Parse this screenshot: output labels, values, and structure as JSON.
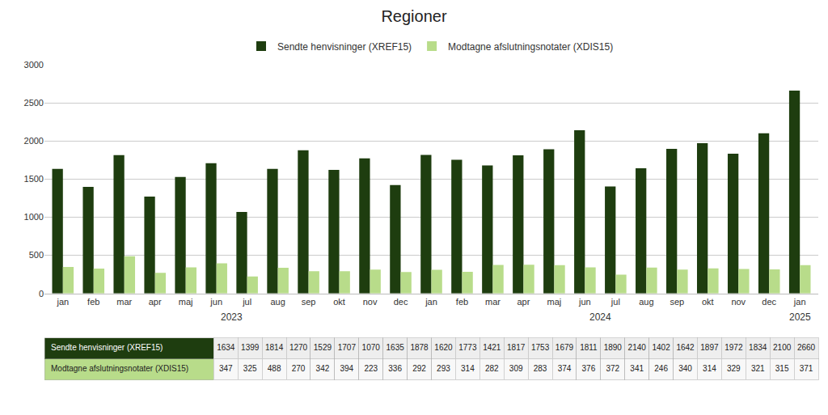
{
  "chart_data": {
    "type": "bar",
    "title": "Regioner",
    "categories": [
      "jan",
      "feb",
      "mar",
      "apr",
      "maj",
      "jun",
      "jul",
      "aug",
      "sep",
      "okt",
      "nov",
      "dec",
      "jan",
      "feb",
      "mar",
      "apr",
      "maj",
      "jun",
      "jul",
      "aug",
      "sep",
      "okt",
      "nov",
      "dec",
      "jan"
    ],
    "series": [
      {
        "name": "Sendte henvisninger (XREF15)",
        "color": "#1e3d0f",
        "values": [
          1634,
          1399,
          1814,
          1270,
          1529,
          1707,
          1070,
          1635,
          1878,
          1620,
          1773,
          1421,
          1817,
          1753,
          1679,
          1811,
          1890,
          2140,
          1402,
          1642,
          1897,
          1972,
          1834,
          2100,
          2660
        ]
      },
      {
        "name": "Modtagne afslutningsnotater (XDIS15)",
        "color": "#b8dc8a",
        "values": [
          347,
          325,
          488,
          270,
          342,
          394,
          223,
          336,
          292,
          293,
          314,
          282,
          309,
          283,
          374,
          376,
          372,
          341,
          246,
          340,
          314,
          329,
          321,
          315,
          371
        ]
      }
    ],
    "ylim": [
      0,
      3000
    ],
    "yticks": [
      0,
      500,
      1000,
      1500,
      2000,
      2500,
      3000
    ],
    "grid": true,
    "legend": "top",
    "annotations": [
      "2023",
      "2024",
      "2025"
    ]
  }
}
